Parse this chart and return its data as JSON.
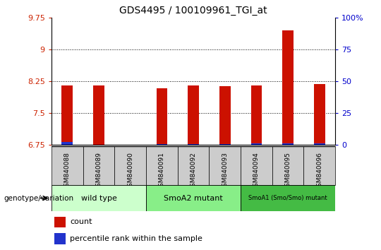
{
  "title": "GDS4495 / 100109961_TGI_at",
  "samples": [
    "GSM840088",
    "GSM840089",
    "GSM840090",
    "GSM840091",
    "GSM840092",
    "GSM840093",
    "GSM840094",
    "GSM840095",
    "GSM840096"
  ],
  "red_values": [
    8.15,
    8.15,
    6.65,
    8.08,
    8.15,
    8.13,
    8.15,
    9.45,
    8.18
  ],
  "blue_values": [
    6.82,
    6.76,
    6.76,
    6.78,
    6.78,
    6.78,
    6.79,
    6.79,
    6.79
  ],
  "ylim": [
    6.75,
    9.75
  ],
  "yticks_left": [
    6.75,
    7.5,
    8.25,
    9.0,
    9.75
  ],
  "yticks_right": [
    0,
    25,
    50,
    75,
    100
  ],
  "ytick_labels_left": [
    "6.75",
    "7.5",
    "8.25",
    "9",
    "9.75"
  ],
  "ytick_labels_right": [
    "0",
    "25",
    "50",
    "75",
    "100%"
  ],
  "grid_lines": [
    7.5,
    8.25,
    9.0
  ],
  "groups": [
    {
      "label": "wild type",
      "start": 0,
      "end": 2,
      "color": "#ccffcc"
    },
    {
      "label": "SmoA2 mutant",
      "start": 3,
      "end": 5,
      "color": "#88ee88"
    },
    {
      "label": "SmoA1 (Smo/Smo) mutant",
      "start": 6,
      "end": 8,
      "color": "#44bb44"
    }
  ],
  "bar_width": 0.35,
  "red_color": "#cc1100",
  "blue_color": "#2233cc",
  "label_count": "count",
  "label_percentile": "percentile rank within the sample",
  "xlabel": "genotype/variation",
  "base_value": 6.75,
  "tick_color_left": "#cc2200",
  "tick_color_right": "#0000cc",
  "sample_box_color": "#cccccc"
}
